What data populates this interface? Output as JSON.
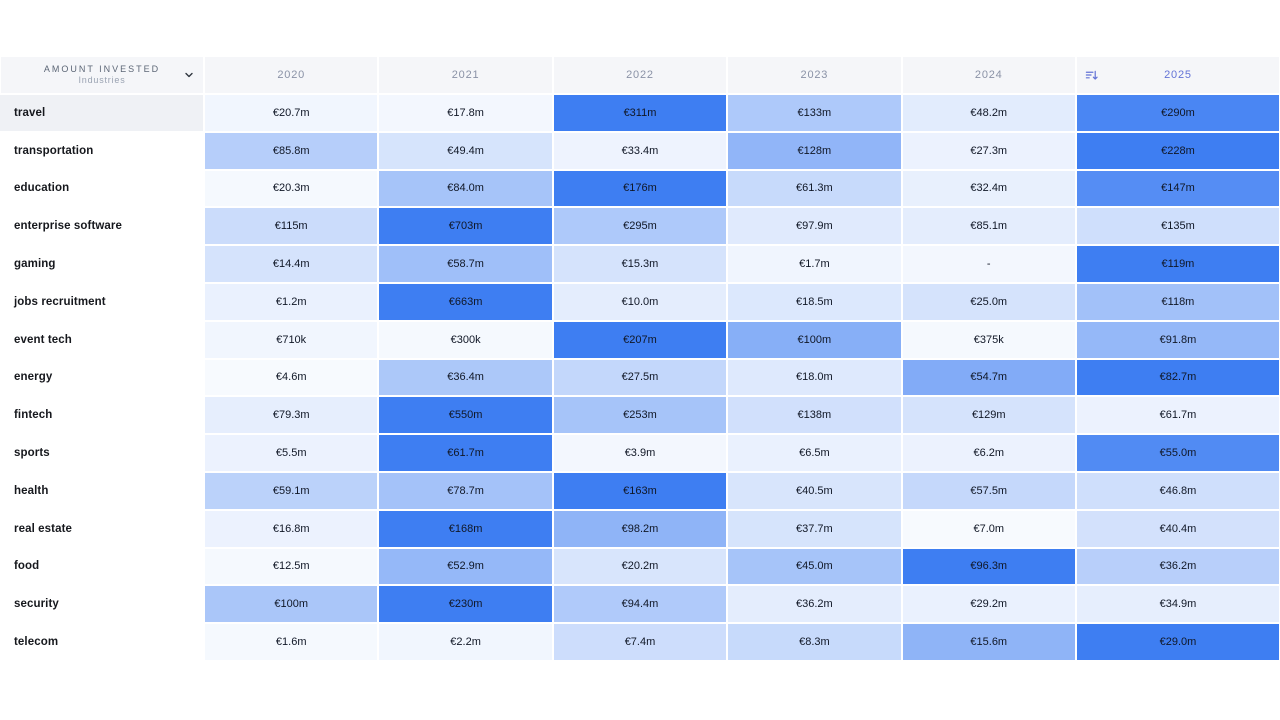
{
  "table_header": {
    "title": "AMOUNT INVESTED",
    "subtitle": "Industries",
    "sort": {
      "column": "2025",
      "direction": "descending"
    }
  },
  "colors": {
    "accent_max": "#3e7ef2",
    "accent_min": "#ffffff",
    "header_bg": "#f5f6f9",
    "header_text": "#8a92a6",
    "sorted_header_text": "#6373d6",
    "label_text": "#16181d",
    "cell_text": "#101726",
    "hovered_row_bg": "#eff1f5",
    "title_text": "#5c6676",
    "subtitle_text": "#9aa3b2"
  },
  "chart_data": {
    "type": "heatmap",
    "title": "AMOUNT INVESTED",
    "subtitle": "Industries",
    "unit": "EUR",
    "columns": [
      "2020",
      "2021",
      "2022",
      "2023",
      "2024",
      "2025"
    ],
    "sorted_column": "2025",
    "hovered_row": "travel",
    "legend": "cell background intensity = value relative to row maximum (white → blue)",
    "rows": [
      {
        "industry": "travel",
        "cells": [
          {
            "value_m": 20.7,
            "label": "€20.7m",
            "tint": 0.07
          },
          {
            "value_m": 17.8,
            "label": "€17.8m",
            "tint": 0.06
          },
          {
            "value_m": 311,
            "label": "€311m",
            "tint": 1
          },
          {
            "value_m": 133,
            "label": "€133m",
            "tint": 0.42
          },
          {
            "value_m": 48.2,
            "label": "€48.2m",
            "tint": 0.15
          },
          {
            "value_m": 290,
            "label": "€290m",
            "tint": 0.94
          }
        ]
      },
      {
        "industry": "transportation",
        "cells": [
          {
            "value_m": 85.8,
            "label": "€85.8m",
            "tint": 0.38
          },
          {
            "value_m": 49.4,
            "label": "€49.4m",
            "tint": 0.21
          },
          {
            "value_m": 33.4,
            "label": "€33.4m",
            "tint": 0.09
          },
          {
            "value_m": 128,
            "label": "€128m",
            "tint": 0.57
          },
          {
            "value_m": 27.3,
            "label": "€27.3m",
            "tint": 0.1
          },
          {
            "value_m": 228,
            "label": "€228m",
            "tint": 1
          }
        ]
      },
      {
        "industry": "education",
        "cells": [
          {
            "value_m": 20.3,
            "label": "€20.3m",
            "tint": 0.05
          },
          {
            "value_m": 84.0,
            "label": "€84.0m",
            "tint": 0.46
          },
          {
            "value_m": 176,
            "label": "€176m",
            "tint": 1
          },
          {
            "value_m": 61.3,
            "label": "€61.3m",
            "tint": 0.29
          },
          {
            "value_m": 32.4,
            "label": "€32.4m",
            "tint": 0.12
          },
          {
            "value_m": 147,
            "label": "€147m",
            "tint": 0.88
          }
        ]
      },
      {
        "industry": "enterprise software",
        "cells": [
          {
            "value_m": 115,
            "label": "€115m",
            "tint": 0.27
          },
          {
            "value_m": 703,
            "label": "€703m",
            "tint": 1
          },
          {
            "value_m": 295,
            "label": "€295m",
            "tint": 0.42
          },
          {
            "value_m": 97.9,
            "label": "€97.9m",
            "tint": 0.16
          },
          {
            "value_m": 85.1,
            "label": "€85.1m",
            "tint": 0.14
          },
          {
            "value_m": 135,
            "label": "€135m",
            "tint": 0.25
          }
        ]
      },
      {
        "industry": "gaming",
        "cells": [
          {
            "value_m": 14.4,
            "label": "€14.4m",
            "tint": 0.22
          },
          {
            "value_m": 58.7,
            "label": "€58.7m",
            "tint": 0.5
          },
          {
            "value_m": 15.3,
            "label": "€15.3m",
            "tint": 0.22
          },
          {
            "value_m": 1.7,
            "label": "€1.7m",
            "tint": 0.08
          },
          {
            "value_m": null,
            "label": "-",
            "tint": 0.06
          },
          {
            "value_m": 119,
            "label": "€119m",
            "tint": 1
          }
        ]
      },
      {
        "industry": "jobs recruitment",
        "cells": [
          {
            "value_m": 1.2,
            "label": "€1.2m",
            "tint": 0.11
          },
          {
            "value_m": 663,
            "label": "€663m",
            "tint": 1
          },
          {
            "value_m": 10.0,
            "label": "€10.0m",
            "tint": 0.14
          },
          {
            "value_m": 18.5,
            "label": "€18.5m",
            "tint": 0.18
          },
          {
            "value_m": 25.0,
            "label": "€25.0m",
            "tint": 0.22
          },
          {
            "value_m": 118,
            "label": "€118m",
            "tint": 0.48
          }
        ]
      },
      {
        "industry": "event tech",
        "cells": [
          {
            "value_m": 0.71,
            "label": "€710k",
            "tint": 0.07
          },
          {
            "value_m": 0.3,
            "label": "€300k",
            "tint": 0.05
          },
          {
            "value_m": 207,
            "label": "€207m",
            "tint": 1
          },
          {
            "value_m": 100,
            "label": "€100m",
            "tint": 0.62
          },
          {
            "value_m": 0.375,
            "label": "€375k",
            "tint": 0.05
          },
          {
            "value_m": 91.8,
            "label": "€91.8m",
            "tint": 0.55
          }
        ]
      },
      {
        "industry": "energy",
        "cells": [
          {
            "value_m": 4.6,
            "label": "€4.6m",
            "tint": 0.04
          },
          {
            "value_m": 36.4,
            "label": "€36.4m",
            "tint": 0.43
          },
          {
            "value_m": 27.5,
            "label": "€27.5m",
            "tint": 0.31
          },
          {
            "value_m": 18.0,
            "label": "€18.0m",
            "tint": 0.17
          },
          {
            "value_m": 54.7,
            "label": "€54.7m",
            "tint": 0.65
          },
          {
            "value_m": 82.7,
            "label": "€82.7m",
            "tint": 1
          }
        ]
      },
      {
        "industry": "fintech",
        "cells": [
          {
            "value_m": 79.3,
            "label": "€79.3m",
            "tint": 0.13
          },
          {
            "value_m": 550,
            "label": "€550m",
            "tint": 1
          },
          {
            "value_m": 253,
            "label": "€253m",
            "tint": 0.46
          },
          {
            "value_m": 138,
            "label": "€138m",
            "tint": 0.24
          },
          {
            "value_m": 129,
            "label": "€129m",
            "tint": 0.22
          },
          {
            "value_m": 61.7,
            "label": "€61.7m",
            "tint": 0.1
          }
        ]
      },
      {
        "industry": "sports",
        "cells": [
          {
            "value_m": 5.5,
            "label": "€5.5m",
            "tint": 0.1
          },
          {
            "value_m": 61.7,
            "label": "€61.7m",
            "tint": 1
          },
          {
            "value_m": 3.9,
            "label": "€3.9m",
            "tint": 0.06
          },
          {
            "value_m": 6.5,
            "label": "€6.5m",
            "tint": 0.11
          },
          {
            "value_m": 6.2,
            "label": "€6.2m",
            "tint": 0.1
          },
          {
            "value_m": 55.0,
            "label": "€55.0m",
            "tint": 0.9
          }
        ]
      },
      {
        "industry": "health",
        "cells": [
          {
            "value_m": 59.1,
            "label": "€59.1m",
            "tint": 0.35
          },
          {
            "value_m": 78.7,
            "label": "€78.7m",
            "tint": 0.47
          },
          {
            "value_m": 163,
            "label": "€163m",
            "tint": 1
          },
          {
            "value_m": 40.5,
            "label": "€40.5m",
            "tint": 0.2
          },
          {
            "value_m": 57.5,
            "label": "€57.5m",
            "tint": 0.3
          },
          {
            "value_m": 46.8,
            "label": "€46.8m",
            "tint": 0.25
          }
        ]
      },
      {
        "industry": "real estate",
        "cells": [
          {
            "value_m": 16.8,
            "label": "€16.8m",
            "tint": 0.1
          },
          {
            "value_m": 168,
            "label": "€168m",
            "tint": 1
          },
          {
            "value_m": 98.2,
            "label": "€98.2m",
            "tint": 0.58
          },
          {
            "value_m": 37.7,
            "label": "€37.7m",
            "tint": 0.21
          },
          {
            "value_m": 7.0,
            "label": "€7.0m",
            "tint": 0.04
          },
          {
            "value_m": 40.4,
            "label": "€40.4m",
            "tint": 0.23
          }
        ]
      },
      {
        "industry": "food",
        "cells": [
          {
            "value_m": 12.5,
            "label": "€12.5m",
            "tint": 0.05
          },
          {
            "value_m": 52.9,
            "label": "€52.9m",
            "tint": 0.55
          },
          {
            "value_m": 20.2,
            "label": "€20.2m",
            "tint": 0.2
          },
          {
            "value_m": 45.0,
            "label": "€45.0m",
            "tint": 0.46
          },
          {
            "value_m": 96.3,
            "label": "€96.3m",
            "tint": 1
          },
          {
            "value_m": 36.2,
            "label": "€36.2m",
            "tint": 0.37
          }
        ]
      },
      {
        "industry": "security",
        "cells": [
          {
            "value_m": 100,
            "label": "€100m",
            "tint": 0.44
          },
          {
            "value_m": 230,
            "label": "€230m",
            "tint": 1
          },
          {
            "value_m": 94.4,
            "label": "€94.4m",
            "tint": 0.41
          },
          {
            "value_m": 36.2,
            "label": "€36.2m",
            "tint": 0.14
          },
          {
            "value_m": 29.2,
            "label": "€29.2m",
            "tint": 0.11
          },
          {
            "value_m": 34.9,
            "label": "€34.9m",
            "tint": 0.13
          }
        ]
      },
      {
        "industry": "telecom",
        "cells": [
          {
            "value_m": 1.6,
            "label": "€1.6m",
            "tint": 0.05
          },
          {
            "value_m": 2.2,
            "label": "€2.2m",
            "tint": 0.07
          },
          {
            "value_m": 7.4,
            "label": "€7.4m",
            "tint": 0.26
          },
          {
            "value_m": 8.3,
            "label": "€8.3m",
            "tint": 0.29
          },
          {
            "value_m": 15.6,
            "label": "€15.6m",
            "tint": 0.58
          },
          {
            "value_m": 29.0,
            "label": "€29.0m",
            "tint": 1
          }
        ]
      }
    ]
  }
}
